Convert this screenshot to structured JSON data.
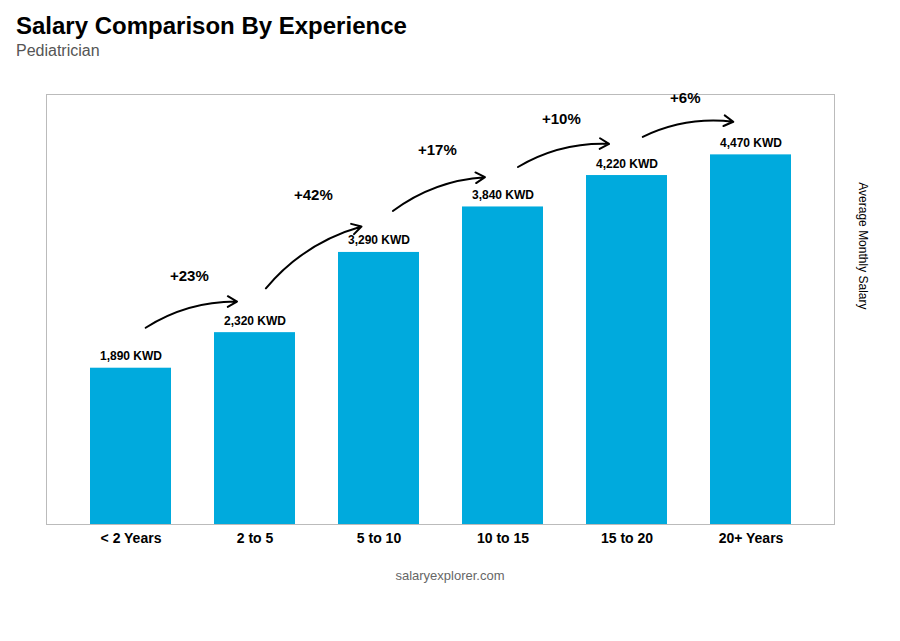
{
  "chart_data": {
    "type": "bar",
    "title": "Salary Comparison By Experience",
    "subtitle": "Pediatrician",
    "ylabel": "Average Monthly Salary",
    "caption": "salaryexplorer.com",
    "categories": [
      "< 2 Years",
      "2 to 5",
      "5 to 10",
      "10 to 15",
      "15 to 20",
      "20+ Years"
    ],
    "values": [
      1890,
      2320,
      3290,
      3840,
      4220,
      4470
    ],
    "value_labels": [
      "1,890 KWD",
      "2,320 KWD",
      "3,290 KWD",
      "3,840 KWD",
      "4,220 KWD",
      "4,470 KWD"
    ],
    "data_labels": true,
    "annotations": [
      "+23%",
      "+42%",
      "+17%",
      "+10%",
      "+6%"
    ],
    "color": "#00aadd",
    "ylim": [
      0,
      5200
    ],
    "tick_labels": "x",
    "grid": false
  }
}
